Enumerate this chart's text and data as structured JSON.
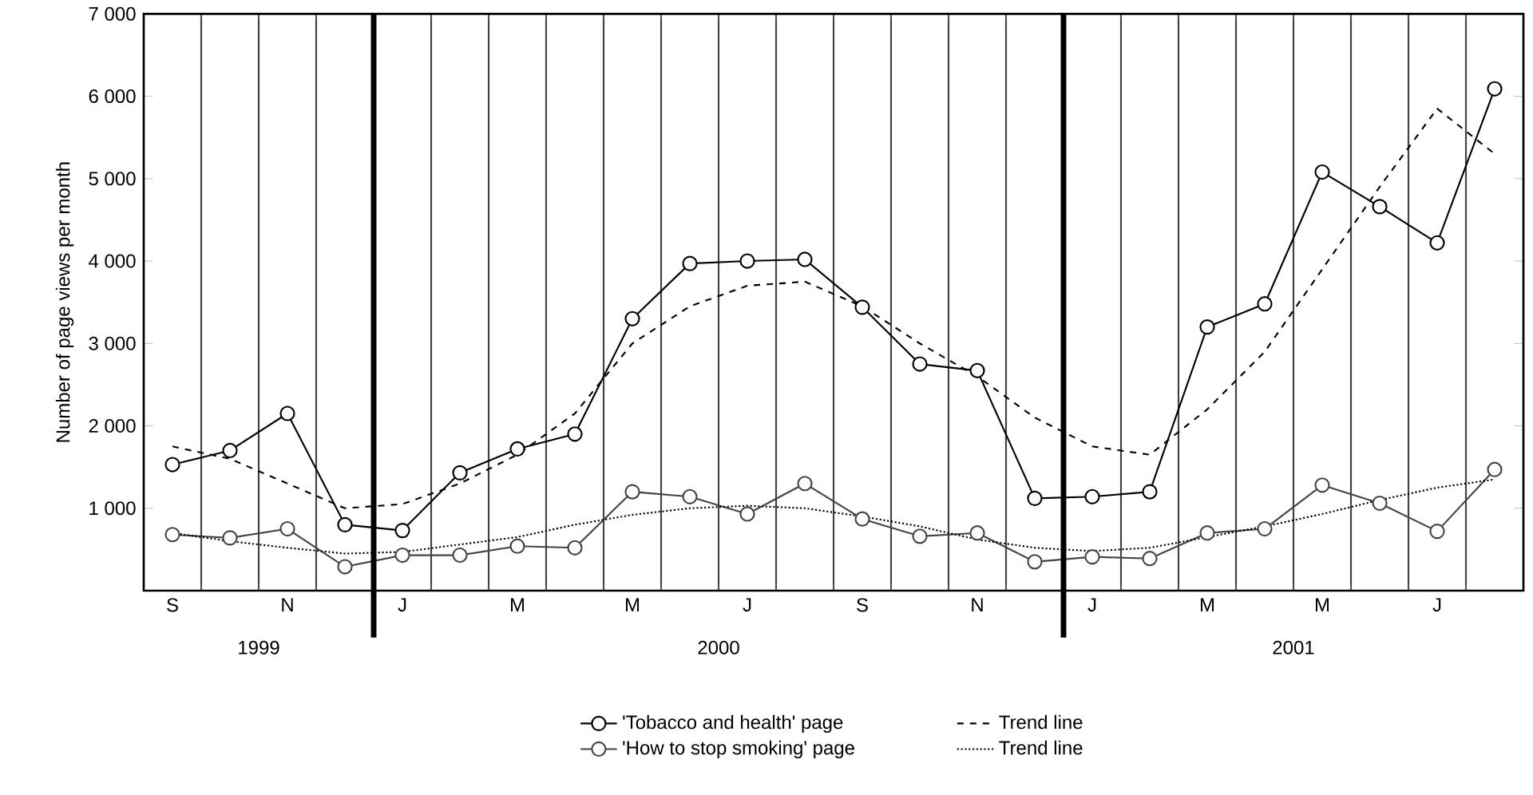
{
  "chart_data": {
    "type": "line",
    "ylabel": "Number of page views per month",
    "categories": [
      "S",
      null,
      "N",
      null,
      "J",
      null,
      "M",
      null,
      "M",
      null,
      "J",
      null,
      "S",
      null,
      "N",
      null,
      "J",
      null,
      "M",
      null,
      "M",
      null,
      "J",
      null
    ],
    "series": [
      {
        "name": "'Tobacco and health' page",
        "color": "#000000",
        "values": [
          1530,
          1700,
          2150,
          800,
          730,
          1430,
          1720,
          1900,
          3300,
          3970,
          4000,
          4020,
          3440,
          2750,
          2670,
          1120,
          1140,
          1200,
          3200,
          3480,
          5080,
          4660,
          4220,
          6090
        ]
      },
      {
        "name": "Trend line",
        "color": "#000000",
        "marker": "none",
        "line_style": "dashed",
        "values": [
          1750,
          1600,
          1300,
          1000,
          1050,
          1300,
          1650,
          2150,
          3000,
          3450,
          3700,
          3750,
          3450,
          3000,
          2600,
          2100,
          1750,
          1650,
          2200,
          2900,
          3900,
          4900,
          5850,
          5300
        ]
      },
      {
        "name": "'How to stop smoking' page",
        "color": "#444444",
        "values": [
          680,
          640,
          750,
          290,
          430,
          430,
          540,
          520,
          1200,
          1140,
          930,
          1300,
          870,
          660,
          700,
          350,
          410,
          390,
          700,
          750,
          1280,
          1060,
          720,
          1470
        ]
      },
      {
        "name": "Trend line",
        "color": "#000000",
        "marker": "none",
        "line_style": "dotted",
        "values": [
          700,
          600,
          520,
          450,
          470,
          560,
          650,
          800,
          920,
          1000,
          1030,
          1000,
          900,
          780,
          620,
          520,
          480,
          520,
          650,
          780,
          930,
          1100,
          1250,
          1350
        ]
      }
    ],
    "ylim": [
      0,
      7000
    ],
    "yticks": [
      {
        "value": 1000,
        "label": "1 000"
      },
      {
        "value": 2000,
        "label": "2 000"
      },
      {
        "value": 3000,
        "label": "3 000"
      },
      {
        "value": 4000,
        "label": "4 000"
      },
      {
        "value": 5000,
        "label": "5 000"
      },
      {
        "value": 6000,
        "label": "6 000"
      },
      {
        "value": 7000,
        "label": "7 000"
      }
    ],
    "annotations": [
      "1999",
      "2000",
      "2001"
    ],
    "grid": "x",
    "legend": "bottom",
    "marker": "circle",
    "line_style": "solid"
  }
}
